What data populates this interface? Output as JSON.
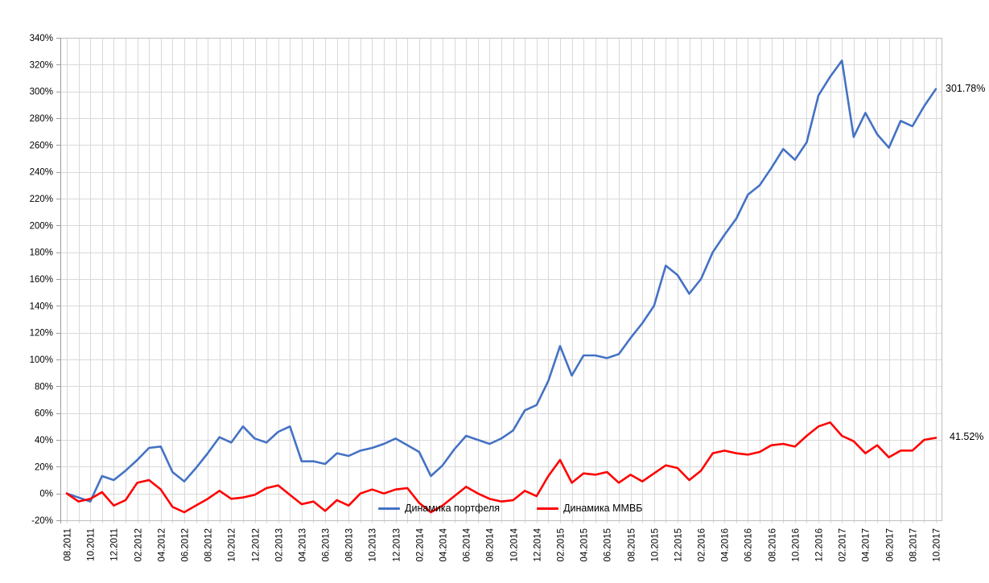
{
  "chart_data": {
    "type": "line",
    "title": "",
    "xlabel": "",
    "ylabel": "",
    "grid": true,
    "legend_position": "bottom-center-inside",
    "months_total": 75,
    "x_label_every_n_months": 2,
    "x_labels": [
      "08.2011",
      "10.2011",
      "12.2011",
      "02.2012",
      "04.2012",
      "06.2012",
      "08.2012",
      "10.2012",
      "12.2012",
      "02.2013",
      "04.2013",
      "06.2013",
      "08.2013",
      "10.2013",
      "12.2013",
      "02.2014",
      "04.2014",
      "06.2014",
      "08.2014",
      "10.2014",
      "12.2014",
      "02.2015",
      "04.2015",
      "06.2015",
      "08.2015",
      "10.2015",
      "12.2015",
      "02.2016",
      "04.2016",
      "06.2016",
      "08.2016",
      "10.2016",
      "12.2016",
      "02.2017",
      "04.2017",
      "06.2017",
      "08.2017",
      "10.2017"
    ],
    "y_axis": {
      "min": -20,
      "max": 340,
      "step": 20,
      "tick_labels": [
        "340%",
        "320%",
        "300%",
        "280%",
        "260%",
        "240%",
        "220%",
        "200%",
        "180%",
        "160%",
        "140%",
        "120%",
        "100%",
        "80%",
        "60%",
        "40%",
        "20%",
        "0%",
        "-20%"
      ]
    },
    "series": [
      {
        "name": "Динамика портфеля",
        "color": "#4472C4",
        "end_label": "301.78%",
        "values": [
          0,
          -3,
          -6,
          13,
          10,
          17,
          25,
          34,
          35,
          16,
          9,
          19,
          30,
          42,
          38,
          50,
          41,
          38,
          46,
          50,
          24,
          24,
          22,
          30,
          28,
          32,
          34,
          37,
          41,
          36,
          31,
          13,
          21,
          33,
          43,
          40,
          37,
          41,
          47,
          62,
          66,
          84,
          110,
          88,
          103,
          103,
          101,
          104,
          116,
          127,
          140,
          170,
          163,
          149,
          160,
          180,
          193,
          205,
          223,
          230,
          243,
          257,
          249,
          262,
          297,
          311,
          323,
          266,
          284,
          268,
          258,
          278,
          274,
          289,
          301.78
        ]
      },
      {
        "name": "Динамика ММВБ",
        "color": "#FF0000",
        "end_label": "41.52%",
        "values": [
          0,
          -6,
          -4,
          1,
          -9,
          -5,
          8,
          10,
          3,
          -10,
          -14,
          -9,
          -4,
          2,
          -4,
          -3,
          -1,
          4,
          6,
          -1,
          -8,
          -6,
          -13,
          -5,
          -9,
          0,
          3,
          0,
          3,
          4,
          -7,
          -14,
          -9,
          -2,
          5,
          0,
          -4,
          -6,
          -5,
          2,
          -2,
          13,
          25,
          8,
          15,
          14,
          16,
          8,
          14,
          9,
          15,
          21,
          19,
          10,
          17,
          30,
          32,
          30,
          29,
          31,
          36,
          37,
          35,
          43,
          50,
          53,
          43,
          39,
          30,
          36,
          27,
          32,
          32,
          40,
          41.52
        ]
      }
    ],
    "colors": {
      "gridline": "#D9D9D9",
      "plot_border": "#BFBFBF",
      "axis": "#9B9B9B",
      "tick_text": "#000000",
      "background": "#FFFFFF"
    }
  }
}
